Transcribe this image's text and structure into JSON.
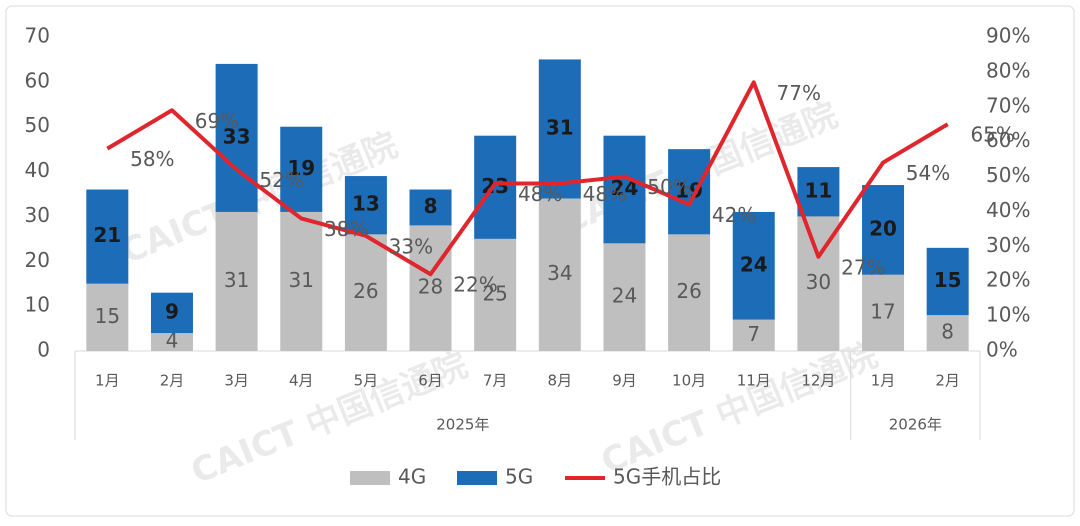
{
  "chart_data": {
    "type": "bar",
    "stacked": true,
    "categories": [
      "1月",
      "2月",
      "3月",
      "4月",
      "5月",
      "6月",
      "7月",
      "8月",
      "9月",
      "10月",
      "11月",
      "12月",
      "1月",
      "2月"
    ],
    "category_group": [
      "2025年",
      "2025年",
      "2025年",
      "2025年",
      "2025年",
      "2025年",
      "2025年",
      "2025年",
      "2025年",
      "2025年",
      "2025年",
      "2025年",
      "2026年",
      "2026年"
    ],
    "series": [
      {
        "name": "4G",
        "type": "bar",
        "color": "#bfbfbf",
        "values": [
          15,
          4,
          31,
          31,
          26,
          28,
          25,
          34,
          24,
          26,
          7,
          30,
          17,
          8
        ]
      },
      {
        "name": "5G",
        "type": "bar",
        "color": "#1c6cb8",
        "values": [
          21,
          9,
          33,
          19,
          13,
          8,
          23,
          31,
          24,
          19,
          24,
          11,
          20,
          15
        ]
      },
      {
        "name": "5G手机占比",
        "type": "line",
        "axis": "y2",
        "color": "#e0262d",
        "values": [
          58,
          69,
          52,
          38,
          33,
          22,
          48,
          48,
          50,
          42,
          77,
          27,
          54,
          65
        ],
        "value_labels": [
          "58%",
          "69%",
          "52%",
          "38%",
          "33%",
          "22%",
          "48%",
          "48%",
          "50%",
          "42%",
          "77%",
          "27%",
          "54%",
          "65%"
        ]
      }
    ],
    "ylim": [
      0,
      70
    ],
    "yticks": [
      0,
      10,
      20,
      30,
      40,
      50,
      60,
      70
    ],
    "y2lim": [
      0,
      90
    ],
    "y2ticks": [
      {
        "value": 0,
        "label": "0%"
      },
      {
        "value": 10,
        "label": "10%"
      },
      {
        "value": 20,
        "label": "20%"
      },
      {
        "value": 30,
        "label": "30%"
      },
      {
        "value": 40,
        "label": "40%"
      },
      {
        "value": 50,
        "label": "50%"
      },
      {
        "value": 60,
        "label": "60%"
      },
      {
        "value": 70,
        "label": "70%"
      },
      {
        "value": 80,
        "label": "80%"
      },
      {
        "value": 90,
        "label": "90%"
      }
    ],
    "grid": false,
    "legend": "bottom",
    "watermark": "CAICT 中国信通院"
  }
}
